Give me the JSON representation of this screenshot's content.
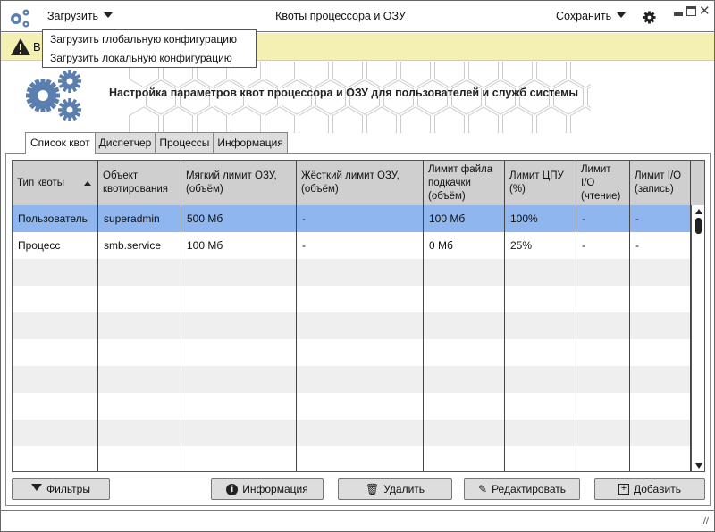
{
  "window": {
    "title": "Квоты процессора и ОЗУ"
  },
  "menu": {
    "load": "Загрузить",
    "save": "Сохранить"
  },
  "load_menu": {
    "items": [
      "Загрузить глобальную конфигурацию",
      "Загрузить локальную конфигурацию"
    ]
  },
  "warning": {
    "text": "В"
  },
  "header": {
    "text": "Настройка параметров квот процессора и ОЗУ для пользователей и служб системы"
  },
  "tabs": [
    "Список квот",
    "Диспетчер",
    "Процессы",
    "Информация"
  ],
  "table": {
    "columns": [
      "Тип квоты",
      "Объект квотирования",
      "Мягкий лимит ОЗУ, (объём)",
      "Жёсткий лимит ОЗУ, (объём)",
      "Лимит файла подкачки (объём)",
      "Лимит ЦПУ (%)",
      "Лимит I/O (чтение)",
      "Лимит I/O (запись)"
    ],
    "sort_column": "Тип квоты",
    "sort": "ascending",
    "rows": [
      [
        "Пользователь",
        "superadmin",
        "500 Мб",
        "-",
        "100 Мб",
        "100%",
        "-",
        "-"
      ],
      [
        "Процесс",
        "smb.service",
        "100 Мб",
        "-",
        "0 Мб",
        "25%",
        "-",
        "-"
      ]
    ],
    "selected_row": 0
  },
  "buttons": {
    "filters": "Фильтры",
    "info": "Информация",
    "delete": "Удалить",
    "edit": "Редактировать",
    "add": "Добавить"
  },
  "colors": {
    "accent": "#5a7fae",
    "selection": "#8fb6ee",
    "warning_bg": "#f3f0b2"
  }
}
